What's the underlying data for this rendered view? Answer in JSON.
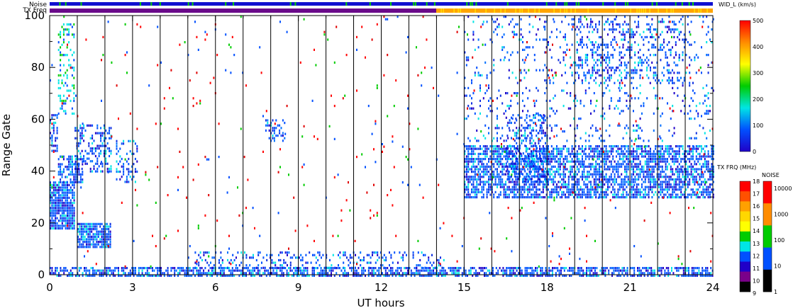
{
  "chart_data": {
    "type": "heatmap",
    "title": "",
    "xlabel": "UT hours",
    "ylabel": "Range Gate",
    "xlim": [
      0,
      24
    ],
    "ylim": [
      0,
      100
    ],
    "x_ticks": [
      0,
      3,
      6,
      9,
      12,
      15,
      18,
      21,
      24
    ],
    "y_ticks": [
      0,
      20,
      40,
      60,
      80,
      100
    ],
    "grid": "vertical lines every 1 UT hour",
    "colorbar": {
      "title": "WID_L (km/s)",
      "ticks": [
        "500",
        "400",
        "300",
        "200",
        "100",
        "0"
      ],
      "colors": [
        "#ff0000",
        "#ff8c00",
        "#ffff00",
        "#00cc00",
        "#00e5e5",
        "#0050ff",
        "#2000c8"
      ]
    },
    "tx_freq_scale": {
      "title": "TX FRQ (MHz)",
      "ticks": [
        "18",
        "17",
        "16",
        "15",
        "14",
        "13",
        "12",
        "11",
        "10",
        "9"
      ],
      "colors": [
        "#ff0000",
        "#ff5000",
        "#ffa000",
        "#ffd700",
        "#ffff00",
        "#00cc00",
        "#00e5e5",
        "#0050ff",
        "#2000c8",
        "#7a008a",
        "#000000"
      ]
    },
    "noise_scale": {
      "title": "NOISE",
      "ticks": [
        "10000",
        "1000",
        "100",
        "10",
        "1"
      ],
      "colors": [
        "#ff0000",
        "#ff8c00",
        "#00cc00",
        "#0050ff",
        "#000000"
      ]
    },
    "top_bars": [
      {
        "label": "Noise",
        "segments": [
          {
            "start": 0,
            "end": 24,
            "color": "#1010d0"
          }
        ],
        "accent": "#00cc00"
      },
      {
        "label": "TX Freq",
        "segments": [
          {
            "start": 0,
            "end": 14,
            "color": "#6a0a8a"
          },
          {
            "start": 14,
            "end": 24,
            "color": "#ffa500"
          }
        ],
        "accent": "#ffe000"
      }
    ],
    "regions": [
      {
        "x0": 0,
        "x1": 0.9,
        "y0": 18,
        "y1": 36,
        "density": 0.85,
        "palette": "blue"
      },
      {
        "x0": 0.3,
        "x1": 1.2,
        "y0": 36,
        "y1": 46,
        "density": 0.6,
        "palette": "blue"
      },
      {
        "x0": 0.9,
        "x1": 2.2,
        "y0": 40,
        "y1": 58,
        "density": 0.35,
        "palette": "blue"
      },
      {
        "x0": 0.0,
        "x1": 0.3,
        "y0": 48,
        "y1": 62,
        "density": 0.6,
        "palette": "blue"
      },
      {
        "x0": 0.3,
        "x1": 0.9,
        "y0": 62,
        "y1": 98,
        "density": 0.25,
        "palette": "cyan"
      },
      {
        "x0": 1.0,
        "x1": 2.2,
        "y0": 11,
        "y1": 20,
        "density": 0.85,
        "palette": "blue"
      },
      {
        "x0": 2.4,
        "x1": 3.2,
        "y0": 36,
        "y1": 52,
        "density": 0.3,
        "palette": "blue"
      },
      {
        "x0": 7.8,
        "x1": 8.5,
        "y0": 52,
        "y1": 60,
        "density": 0.4,
        "palette": "blue"
      },
      {
        "x0": 15.0,
        "x1": 24.0,
        "y0": 30,
        "y1": 50,
        "density": 0.65,
        "palette": "blue"
      },
      {
        "x0": 16.5,
        "x1": 18.0,
        "y0": 36,
        "y1": 62,
        "density": 0.35,
        "palette": "blue"
      },
      {
        "x0": 15.0,
        "x1": 24.0,
        "y0": 52,
        "y1": 58,
        "density": 0.12,
        "palette": "blue"
      },
      {
        "x0": 15.0,
        "x1": 24.0,
        "y0": 60,
        "y1": 100,
        "density": 0.1,
        "palette": "blue"
      },
      {
        "x0": 19.0,
        "x1": 23.0,
        "y0": 74,
        "y1": 98,
        "density": 0.22,
        "palette": "blue"
      },
      {
        "x0": 0.0,
        "x1": 24.0,
        "y0": 0,
        "y1": 3,
        "density": 0.65,
        "palette": "blue"
      },
      {
        "x0": 5.0,
        "x1": 14.5,
        "y0": 3,
        "y1": 9,
        "density": 0.22,
        "palette": "blue"
      },
      {
        "x0": 0.0,
        "x1": 24.0,
        "y0": 3,
        "y1": 100,
        "density": 0.012,
        "palette": "red"
      }
    ]
  }
}
